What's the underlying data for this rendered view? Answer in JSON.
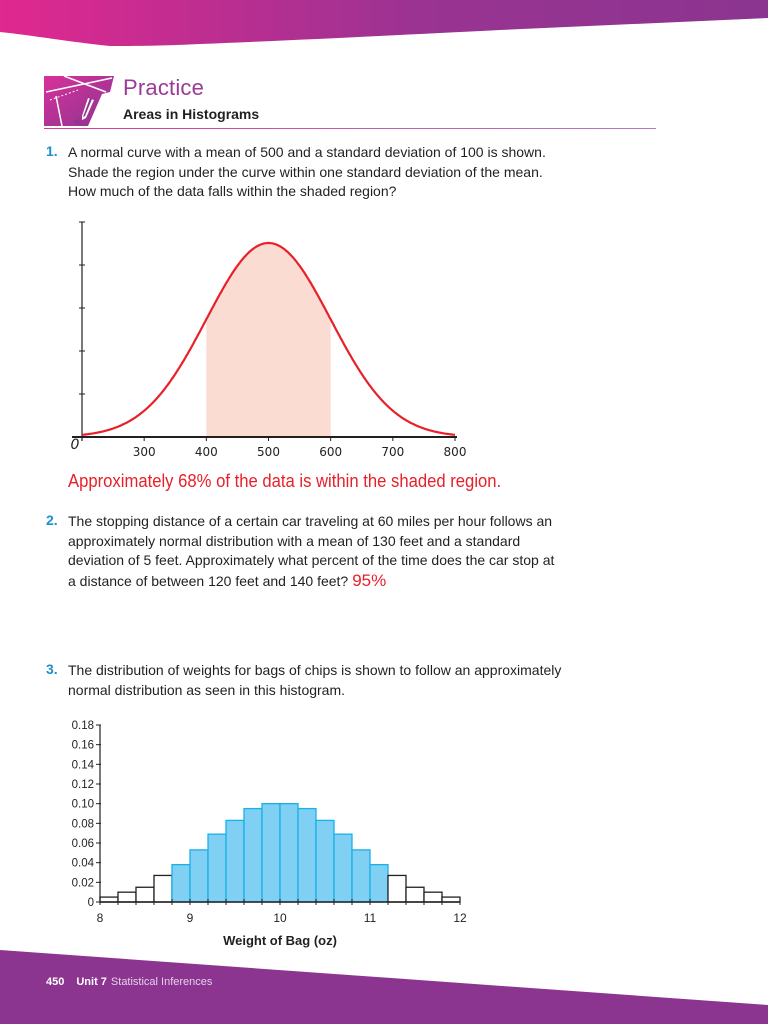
{
  "header": {
    "section_title": "Practice",
    "lesson_title": "Areas in Histograms",
    "icon": "practice-pencil-icon",
    "colors": {
      "band_left": "#e0288f",
      "band_right": "#8b3590",
      "title": "#9b3a98"
    }
  },
  "questions": [
    {
      "number": "1.",
      "text": "A normal curve with a mean of 500 and a standard deviation of 100 is shown. Shade the region under the curve within one standard deviation of the mean. How much of the data falls within the shaded region?",
      "answer": "Approximately 68% of the data is within the shaded region."
    },
    {
      "number": "2.",
      "text": "The stopping distance of a certain car traveling at 60 miles per hour follows an approximately normal distribution with a mean of 130 feet and a standard deviation of 5 feet. Approximately what percent of the time does the car stop at a distance of between 120 feet and 140 feet?",
      "answer": "95%"
    },
    {
      "number": "3.",
      "text": "The distribution of weights for bags of chips is shown to follow an approximately normal distribution as seen in this histogram."
    }
  ],
  "chart_data": [
    {
      "type": "line",
      "title": "",
      "xlabel": "",
      "ylabel": "",
      "description": "Normal curve, mean 500, sd 100, shaded from 400 to 600",
      "mean": 500,
      "sd": 100,
      "x_ticks": [
        300,
        400,
        500,
        600,
        700,
        800
      ],
      "origin_label": "0",
      "xlim": [
        200,
        800
      ],
      "y_ticks_count": 5,
      "shaded_region": [
        400,
        600
      ],
      "colors": {
        "curve": "#e8202a",
        "shade": "#fbdcd3"
      }
    },
    {
      "type": "bar",
      "title": "",
      "xlabel": "Weight of Bag (oz)",
      "ylabel": "",
      "x_ticks": [
        "8",
        "9",
        "10",
        "11",
        "12"
      ],
      "y_ticks": [
        "0",
        "0.02",
        "0.04",
        "0.06",
        "0.08",
        "0.10",
        "0.12",
        "0.14",
        "0.16",
        "0.18"
      ],
      "ylim": [
        0,
        0.18
      ],
      "xlim": [
        8,
        12
      ],
      "bin_width": 0.2,
      "bins": [
        8.0,
        8.2,
        8.4,
        8.6,
        8.8,
        9.0,
        9.2,
        9.4,
        9.6,
        9.8,
        10.0,
        10.2,
        10.4,
        10.6,
        10.8,
        11.0,
        11.2,
        11.4,
        11.6,
        11.8
      ],
      "values": [
        0.005,
        0.01,
        0.015,
        0.027,
        0.038,
        0.053,
        0.069,
        0.083,
        0.095,
        0.1,
        0.1,
        0.095,
        0.083,
        0.069,
        0.053,
        0.038,
        0.027,
        0.015,
        0.01,
        0.005
      ],
      "highlighted": [
        false,
        false,
        false,
        false,
        true,
        true,
        true,
        true,
        true,
        true,
        true,
        true,
        true,
        true,
        true,
        true,
        false,
        false,
        false,
        false
      ],
      "colors": {
        "highlight_fill": "#7fd0f2",
        "highlight_border": "#1ab0e8",
        "plain_fill": "#ffffff",
        "plain_border": "#231f20"
      }
    }
  ],
  "footer": {
    "page_number": "450",
    "unit_label": "Unit 7",
    "unit_name": "Statistical Inferences",
    "band_color": "#8b3590"
  }
}
